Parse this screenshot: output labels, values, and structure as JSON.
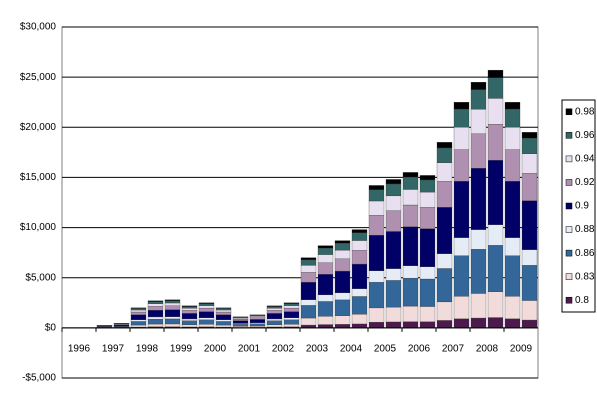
{
  "chart_data": {
    "type": "stacked_bar",
    "categories": [
      "1996",
      null,
      "1997",
      null,
      "1998",
      null,
      "1999",
      null,
      "2000",
      null,
      "2001",
      null,
      "2002",
      null,
      "2003",
      null,
      "2004",
      null,
      "2005",
      null,
      "2006",
      null,
      "2007",
      null,
      "2008",
      null,
      "2009",
      null
    ],
    "series": [
      {
        "name": "0.8",
        "color": "#4d1a4d",
        "values": [
          0,
          0,
          10,
          20,
          80,
          110,
          110,
          90,
          100,
          80,
          40,
          50,
          90,
          100,
          280,
          330,
          350,
          390,
          570,
          590,
          620,
          610,
          740,
          900,
          980,
          1030,
          900,
          780
        ]
      },
      {
        "name": "0.83",
        "color": "#f2dcdb",
        "values": [
          0,
          0,
          25,
          45,
          200,
          270,
          280,
          220,
          250,
          200,
          110,
          130,
          220,
          250,
          700,
          820,
          870,
          980,
          1420,
          1480,
          1550,
          1520,
          1850,
          2250,
          2450,
          2570,
          2250,
          1950
        ]
      },
      {
        "name": "0.86",
        "color": "#336699",
        "values": [
          0,
          0,
          45,
          80,
          360,
          490,
          500,
          400,
          450,
          360,
          200,
          230,
          400,
          450,
          1260,
          1480,
          1570,
          1760,
          2560,
          2660,
          2790,
          2740,
          3330,
          4050,
          4410,
          4630,
          4050,
          3510
        ]
      },
      {
        "name": "0.88",
        "color": "#e6ecf6",
        "values": [
          0,
          0,
          20,
          35,
          160,
          220,
          220,
          180,
          200,
          160,
          90,
          100,
          180,
          200,
          560,
          660,
          700,
          780,
          1140,
          1180,
          1240,
          1220,
          1480,
          1800,
          1960,
          2060,
          1800,
          1560
        ]
      },
      {
        "name": "0.9",
        "color": "#000066",
        "values": [
          0,
          0,
          60,
          110,
          500,
          670,
          700,
          550,
          620,
          500,
          280,
          330,
          550,
          620,
          1750,
          2050,
          2170,
          2450,
          3550,
          3700,
          3880,
          3800,
          4620,
          5620,
          6120,
          6420,
          5620,
          4880
        ]
      },
      {
        "name": "0.92",
        "color": "#b090b0",
        "values": [
          0,
          0,
          35,
          65,
          280,
          380,
          390,
          300,
          350,
          280,
          150,
          180,
          300,
          350,
          980,
          1150,
          1220,
          1370,
          1990,
          2070,
          2170,
          2130,
          2590,
          3150,
          3430,
          3600,
          3150,
          2730
        ]
      },
      {
        "name": "0.94",
        "color": "#e8e0f0",
        "values": [
          0,
          0,
          25,
          45,
          200,
          270,
          280,
          220,
          250,
          200,
          110,
          130,
          220,
          250,
          700,
          820,
          870,
          980,
          1420,
          1480,
          1550,
          1520,
          1850,
          2250,
          2450,
          2570,
          2250,
          1950
        ]
      },
      {
        "name": "0.96",
        "color": "#336666",
        "values": [
          0,
          0,
          20,
          35,
          160,
          210,
          230,
          170,
          200,
          160,
          90,
          100,
          170,
          200,
          560,
          650,
          700,
          780,
          1130,
          1190,
          1240,
          1210,
          1480,
          1800,
          1960,
          2060,
          1800,
          1560
        ]
      },
      {
        "name": "0.98",
        "color": "#000000",
        "values": [
          0,
          0,
          10,
          15,
          60,
          80,
          90,
          70,
          80,
          60,
          30,
          50,
          70,
          80,
          210,
          240,
          250,
          310,
          420,
          450,
          460,
          450,
          560,
          680,
          740,
          760,
          680,
          580
        ]
      }
    ],
    "ylim": [
      -5000,
      30000
    ],
    "yticks": [
      {
        "value": -5000,
        "label": "-$5,000"
      },
      {
        "value": 0,
        "label": "$0"
      },
      {
        "value": 5000,
        "label": "$5,000"
      },
      {
        "value": 10000,
        "label": "$10,000"
      },
      {
        "value": 15000,
        "label": "$15,000"
      },
      {
        "value": 20000,
        "label": "$20,000"
      },
      {
        "value": 25000,
        "label": "$25,000"
      },
      {
        "value": 30000,
        "label": "$30,000"
      }
    ],
    "grid": true,
    "legend": "right"
  }
}
